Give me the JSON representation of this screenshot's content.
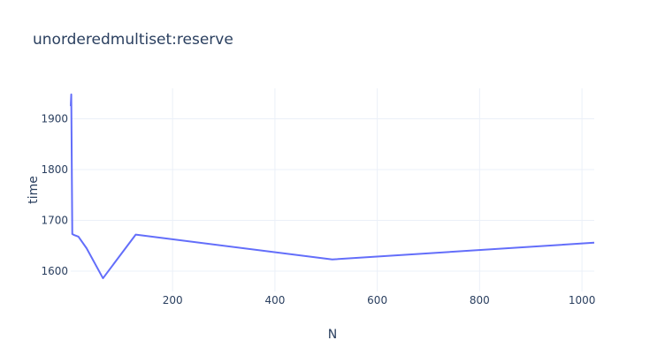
{
  "chart_data": {
    "type": "line",
    "title": "unorderedmultiset:reserve",
    "xlabel": "N",
    "ylabel": "time",
    "xlim": [
      1,
      1024
    ],
    "ylim": [
      1560,
      1960
    ],
    "xticks": [
      200,
      400,
      600,
      800,
      1000
    ],
    "yticks": [
      1600,
      1700,
      1800,
      1900
    ],
    "grid": true,
    "line_color": "#636efa",
    "series": [
      {
        "x": [
          1,
          2,
          4,
          8,
          16,
          32,
          64,
          128,
          512,
          1024
        ],
        "y": [
          1925,
          1948,
          1673,
          1671,
          1668,
          1645,
          1586,
          1672,
          1623,
          1656
        ]
      }
    ]
  }
}
